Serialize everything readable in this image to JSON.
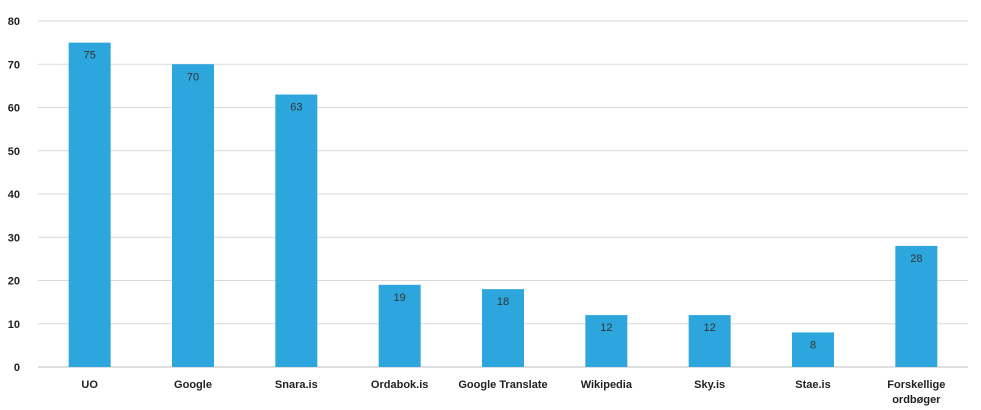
{
  "chart_data": {
    "type": "bar",
    "categories": [
      "UO",
      "Google",
      "Snara.is",
      "Ordabok.is",
      "Google Translate",
      "Wikipedia",
      "Sky.is",
      "Stae.is",
      "Forskellige ordbøger"
    ],
    "category_lines": [
      [
        "UO"
      ],
      [
        "Google"
      ],
      [
        "Snara.is"
      ],
      [
        "Ordabok.is"
      ],
      [
        "Google Translate"
      ],
      [
        "Wikipedia"
      ],
      [
        "Sky.is"
      ],
      [
        "Stae.is"
      ],
      [
        "Forskellige",
        "ordbøger"
      ]
    ],
    "values": [
      75,
      70,
      63,
      19,
      18,
      12,
      12,
      8,
      28
    ],
    "yticks": [
      0,
      10,
      20,
      30,
      40,
      50,
      60,
      70,
      80
    ],
    "ylim": [
      0,
      80
    ],
    "grid": true,
    "legend": "none",
    "title": "",
    "xlabel": "",
    "ylabel": "",
    "bar_color": "#2ca6dc",
    "grid_color": "#d9d9d9",
    "axis_color": "#bfbfbf"
  }
}
